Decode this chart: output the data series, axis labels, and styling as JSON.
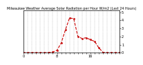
{
  "title": "Milwaukee Weather Average Solar Radiation per Hour W/m2 (Last 24 Hours)",
  "x": [
    0,
    1,
    2,
    3,
    4,
    5,
    6,
    7,
    8,
    9,
    10,
    11,
    12,
    13,
    14,
    15,
    16,
    17,
    18,
    19,
    20,
    21,
    22,
    23
  ],
  "y": [
    0,
    0,
    0,
    0,
    0,
    0,
    2,
    8,
    30,
    120,
    280,
    430,
    420,
    200,
    175,
    185,
    160,
    140,
    60,
    5,
    0,
    0,
    0,
    0
  ],
  "line_color": "#cc0000",
  "marker": ".",
  "linestyle": "--",
  "ylim": [
    0,
    520
  ],
  "xlim": [
    0,
    23
  ],
  "yticks": [
    0,
    100,
    200,
    300,
    400,
    500
  ],
  "ytick_labels": [
    "0",
    "1",
    "2",
    "3",
    "4",
    "5"
  ],
  "grid_color": "#999999",
  "bg_color": "#ffffff",
  "linewidth": 0.8,
  "markersize": 2.0,
  "title_fontsize": 3.5,
  "tick_fontsize": 3.5
}
